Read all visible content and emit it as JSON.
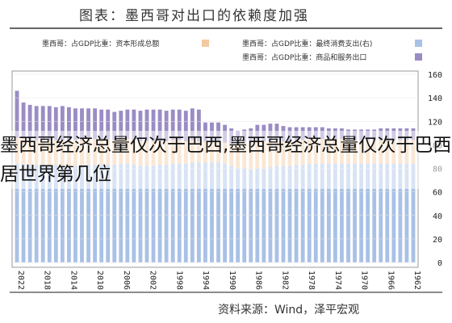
{
  "overlay_text": "墨西哥经济总量仅次于巴西,墨西哥经济总量仅次于巴西居世界第几位",
  "colors": {
    "blue": "#a9c1e6",
    "orange": "#f3c9a0",
    "purple": "#9a8cc4",
    "frame": "#999999"
  },
  "chart_data": {
    "type": "bar",
    "title": "图表：墨西哥对出口的依赖度加强",
    "source": "资料来源：Wind，泽平宏观",
    "legend": [
      {
        "label": "墨西哥：占GDP比重：资本形成总额",
        "color": "#f3c9a0"
      },
      {
        "label": "墨西哥：占GDP比重：最终消费支出(右)",
        "color": "#a9c1e6"
      },
      {
        "label": "墨西哥：占GDP比重：商品和服务出口",
        "color": "#9a8cc4"
      }
    ],
    "y_axis": {
      "position": "right",
      "min": 0,
      "max": 160,
      "ticks": [
        "0",
        "20",
        "40",
        "60",
        "80",
        "100",
        "120",
        "140",
        "160"
      ]
    },
    "x_tick_labels": [
      "2022",
      "2018",
      "2014",
      "2010",
      "2006",
      "2002",
      "1998",
      "1994",
      "1990",
      "1986",
      "1982",
      "1978",
      "1974",
      "1970",
      "1966",
      "1962"
    ],
    "series": [
      {
        "name": "墨西哥：占GDP比重：最终消费支出(右)",
        "values": [
          84,
          84,
          83,
          83,
          83,
          83,
          83,
          82,
          82,
          82,
          82,
          83,
          83,
          83,
          83,
          83,
          84,
          84,
          83,
          82,
          82,
          82,
          83,
          83,
          84,
          84,
          84,
          85,
          85,
          85,
          85,
          85,
          84,
          82,
          80,
          80,
          79,
          80,
          80,
          81,
          82,
          82,
          82,
          83,
          83,
          84,
          84,
          84,
          84,
          84,
          84,
          84,
          84,
          84,
          84,
          84,
          84,
          84,
          84,
          84,
          84,
          84
        ]
      },
      {
        "name": "墨西哥：占GDP比重：资本形成总额",
        "values": [
          22,
          22,
          21,
          21,
          21,
          21,
          21,
          22,
          22,
          22,
          22,
          22,
          22,
          22,
          22,
          21,
          21,
          21,
          21,
          21,
          21,
          21,
          20,
          20,
          20,
          20,
          19,
          19,
          18,
          18,
          18,
          18,
          18,
          19,
          20,
          22,
          23,
          24,
          23,
          22,
          22,
          21,
          21,
          21,
          21,
          21,
          21,
          21,
          21,
          21,
          21,
          20,
          20,
          20,
          20,
          20,
          20,
          20,
          20,
          20,
          20,
          20
        ]
      },
      {
        "name": "墨西哥：占GDP比重：商品和服务出口",
        "values": [
          40,
          30,
          30,
          29,
          29,
          29,
          28,
          29,
          28,
          27,
          27,
          26,
          26,
          25,
          25,
          24,
          24,
          25,
          26,
          26,
          27,
          27,
          27,
          26,
          26,
          26,
          26,
          27,
          27,
          16,
          16,
          16,
          15,
          13,
          12,
          11,
          12,
          13,
          14,
          15,
          14,
          13,
          12,
          11,
          11,
          10,
          10,
          10,
          9,
          9,
          9,
          9,
          9,
          9,
          9,
          9,
          10,
          10,
          10,
          10,
          10,
          10
        ]
      }
    ]
  }
}
